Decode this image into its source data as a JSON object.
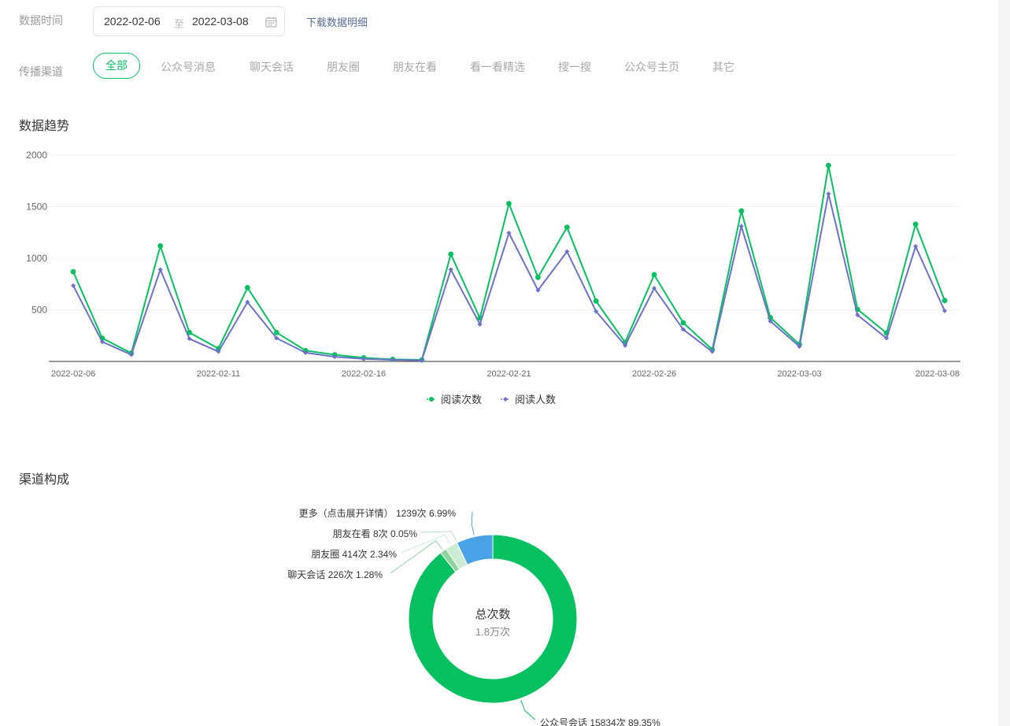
{
  "filters": {
    "time_label": "数据时间",
    "start_date": "2022-02-06",
    "to_label": "至",
    "end_date": "2022-03-08",
    "download_label": "下载数据明细",
    "channel_label": "传播渠道",
    "channels": [
      "全部",
      "公众号消息",
      "聊天会话",
      "朋友圈",
      "朋友在看",
      "看一看精选",
      "搜一搜",
      "公众号主页",
      "其它"
    ],
    "active_channel": "全部"
  },
  "trend": {
    "title": "数据趋势"
  },
  "composition": {
    "title": "渠道构成",
    "center_title": "总次数",
    "center_value": "1.8万次"
  },
  "colors": {
    "accent": "#07c160",
    "series_read_count": "#07c160",
    "series_readers": "#6b72c8",
    "pie_more": "#4aa2e6",
    "pie_friends_watching": "#d3efd9",
    "pie_moments": "#c9ecd3",
    "pie_chat": "#8fd49e",
    "pie_official_chat": "#07c160",
    "link": "#576b95"
  },
  "chart_data": [
    {
      "type": "line",
      "title": "",
      "x": [
        "2022-02-06",
        "2022-02-07",
        "2022-02-08",
        "2022-02-09",
        "2022-02-10",
        "2022-02-11",
        "2022-02-12",
        "2022-02-13",
        "2022-02-14",
        "2022-02-15",
        "2022-02-16",
        "2022-02-17",
        "2022-02-18",
        "2022-02-19",
        "2022-02-20",
        "2022-02-21",
        "2022-02-22",
        "2022-02-23",
        "2022-02-24",
        "2022-02-25",
        "2022-02-26",
        "2022-02-27",
        "2022-02-28",
        "2022-03-01",
        "2022-03-02",
        "2022-03-03",
        "2022-03-04",
        "2022-03-05",
        "2022-03-06",
        "2022-03-07",
        "2022-03-08"
      ],
      "x_tick_labels": [
        "2022-02-06",
        "2022-02-11",
        "2022-02-16",
        "2022-02-21",
        "2022-02-26",
        "2022-03-03",
        "2022-03-08"
      ],
      "series": [
        {
          "name": "阅读次数",
          "values": [
            870,
            225,
            80,
            1120,
            280,
            125,
            715,
            280,
            105,
            65,
            35,
            20,
            15,
            1040,
            420,
            1530,
            815,
            1300,
            585,
            185,
            840,
            375,
            115,
            1460,
            425,
            165,
            1900,
            505,
            275,
            1330,
            590
          ]
        },
        {
          "name": "阅读人数",
          "values": [
            735,
            190,
            65,
            890,
            220,
            95,
            575,
            225,
            85,
            45,
            25,
            15,
            10,
            890,
            360,
            1245,
            690,
            1065,
            485,
            155,
            710,
            310,
            95,
            1310,
            390,
            145,
            1625,
            450,
            225,
            1115,
            490
          ]
        }
      ],
      "yticks": [
        500,
        1000,
        1500,
        2000
      ],
      "ylim": [
        0,
        2000
      ],
      "grid": true,
      "legend": "bottom-center"
    },
    {
      "type": "pie",
      "title": "",
      "labels": [
        "公众号会话",
        "更多（点击展开详情）",
        "朋友在看",
        "朋友圈",
        "聊天会话"
      ],
      "values": [
        15834,
        1239,
        8,
        414,
        226
      ],
      "percents": [
        "89.35%",
        "6.99%",
        "0.05%",
        "2.34%",
        "1.28%"
      ],
      "slice_labels": [
        "公众号会话 15834次 89.35%",
        "更多（点击展开详情） 1239次 6.99%",
        "朋友在看 8次 0.05%",
        "朋友圈 414次 2.34%",
        "聊天会话 226次 1.28%"
      ],
      "donut": true
    }
  ]
}
